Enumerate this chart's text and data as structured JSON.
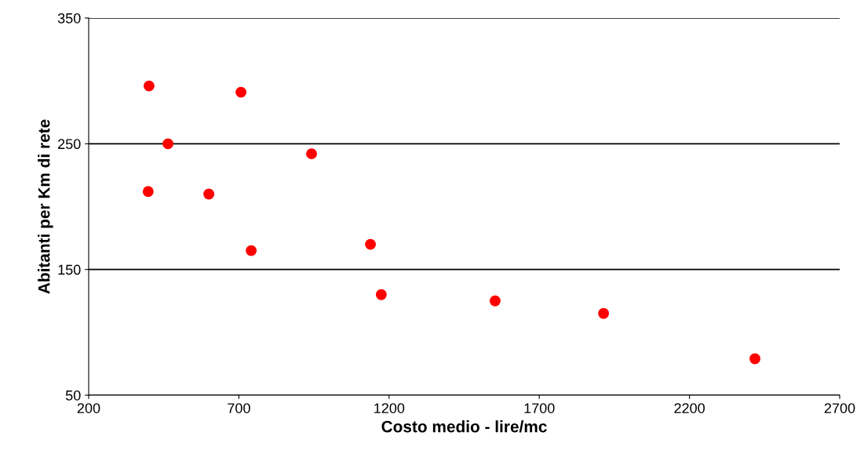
{
  "chart_data": {
    "type": "scatter",
    "xlabel": "Costo medio - lire/mc",
    "ylabel": "Abitanti per Km di rete",
    "x": [
      401,
      707,
      464,
      942,
      398,
      600,
      741,
      1138,
      1174,
      1553,
      1914,
      2418
    ],
    "series": [
      {
        "color": "#ff0000",
        "values": [
          296,
          291,
          250,
          242,
          212,
          210,
          165,
          170,
          130,
          125,
          115,
          79
        ]
      }
    ],
    "xlim": [
      200,
      2700
    ],
    "xticks": [
      200,
      700,
      1200,
      1700,
      2200,
      2700
    ],
    "ylim": [
      50,
      350
    ],
    "yticks": [
      50,
      150,
      250,
      350
    ],
    "grid": "y",
    "marker": "circle",
    "legend": false
  }
}
